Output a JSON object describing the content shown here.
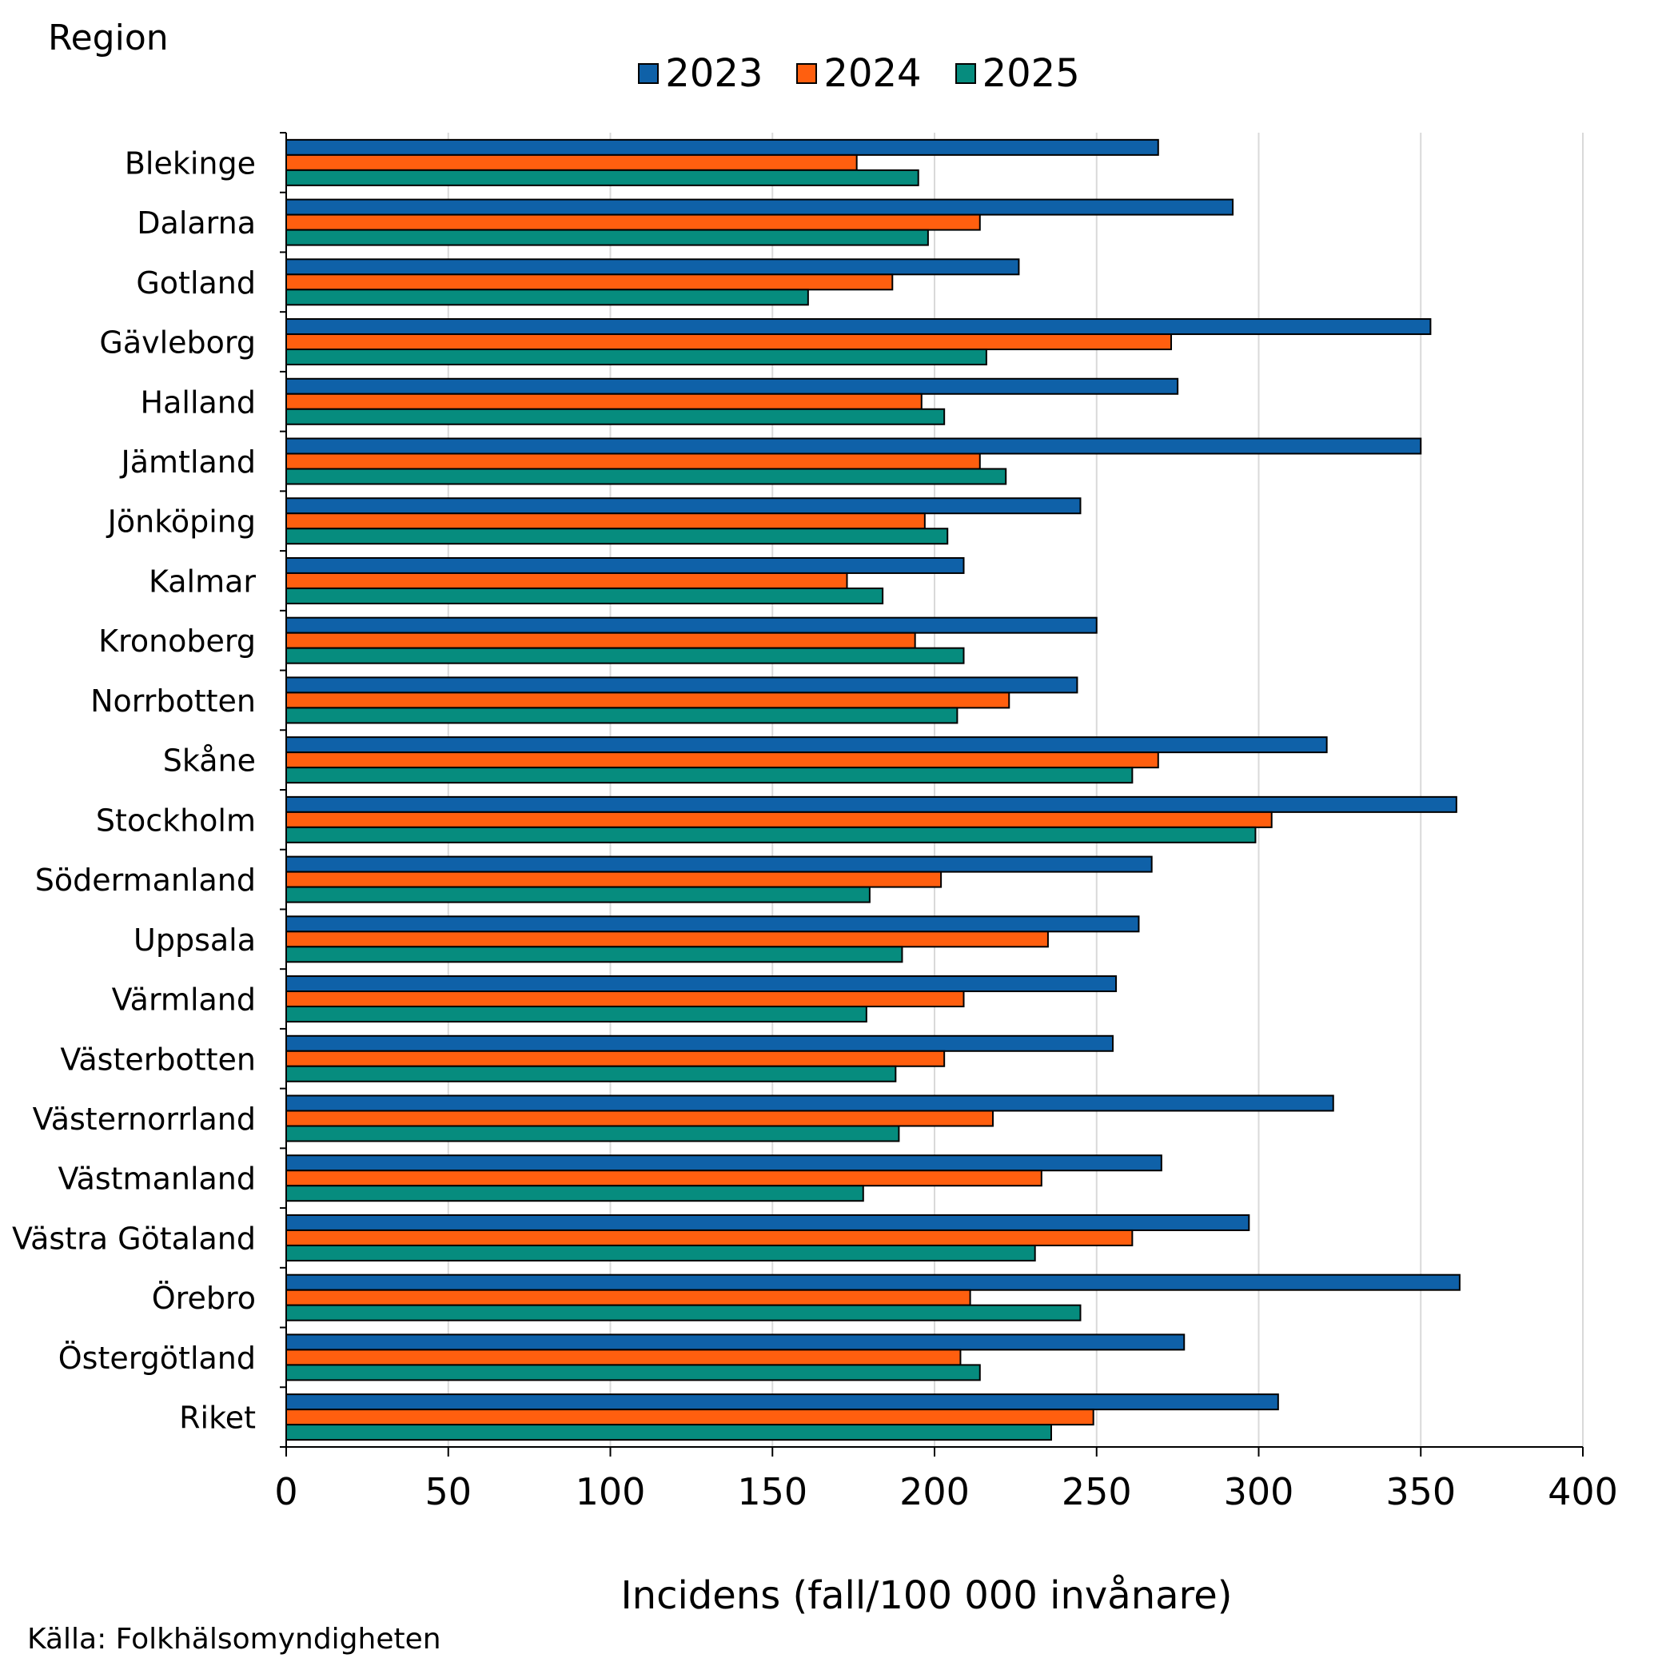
{
  "chart_data": {
    "type": "bar",
    "orientation": "horizontal",
    "title": "",
    "ylabel": "Region",
    "xlabel": "Incidens (fall/100 000 invånare)",
    "source": "Källa: Folkhälsomyndigheten",
    "xlim": [
      0,
      400
    ],
    "xticks": [
      "0",
      "50",
      "100",
      "150",
      "200",
      "250",
      "300",
      "350",
      "400"
    ],
    "grid": "vertical",
    "legend_position": "top-center",
    "categories": [
      "Blekinge",
      "Dalarna",
      "Gotland",
      "Gävleborg",
      "Halland",
      "Jämtland",
      "Jönköping",
      "Kalmar",
      "Kronoberg",
      "Norrbotten",
      "Skåne",
      "Stockholm",
      "Södermanland",
      "Uppsala",
      "Värmland",
      "Västerbotten",
      "Västernorrland",
      "Västmanland",
      "Västra Götaland",
      "Örebro",
      "Östergötland",
      "Riket"
    ],
    "series": [
      {
        "name": "2023",
        "color": "#0F61A8",
        "values": [
          269,
          292,
          226,
          353,
          275,
          350,
          245,
          209,
          250,
          244,
          321,
          361,
          267,
          263,
          256,
          255,
          323,
          270,
          297,
          362,
          277,
          306
        ]
      },
      {
        "name": "2024",
        "color": "#FF5F0F",
        "values": [
          176,
          214,
          187,
          273,
          196,
          214,
          197,
          173,
          194,
          223,
          269,
          304,
          202,
          235,
          209,
          203,
          218,
          233,
          261,
          211,
          208,
          249
        ]
      },
      {
        "name": "2025",
        "color": "#068C7E",
        "values": [
          195,
          198,
          161,
          216,
          203,
          222,
          204,
          184,
          209,
          207,
          261,
          299,
          180,
          190,
          179,
          188,
          189,
          178,
          231,
          245,
          214,
          236
        ]
      }
    ]
  }
}
